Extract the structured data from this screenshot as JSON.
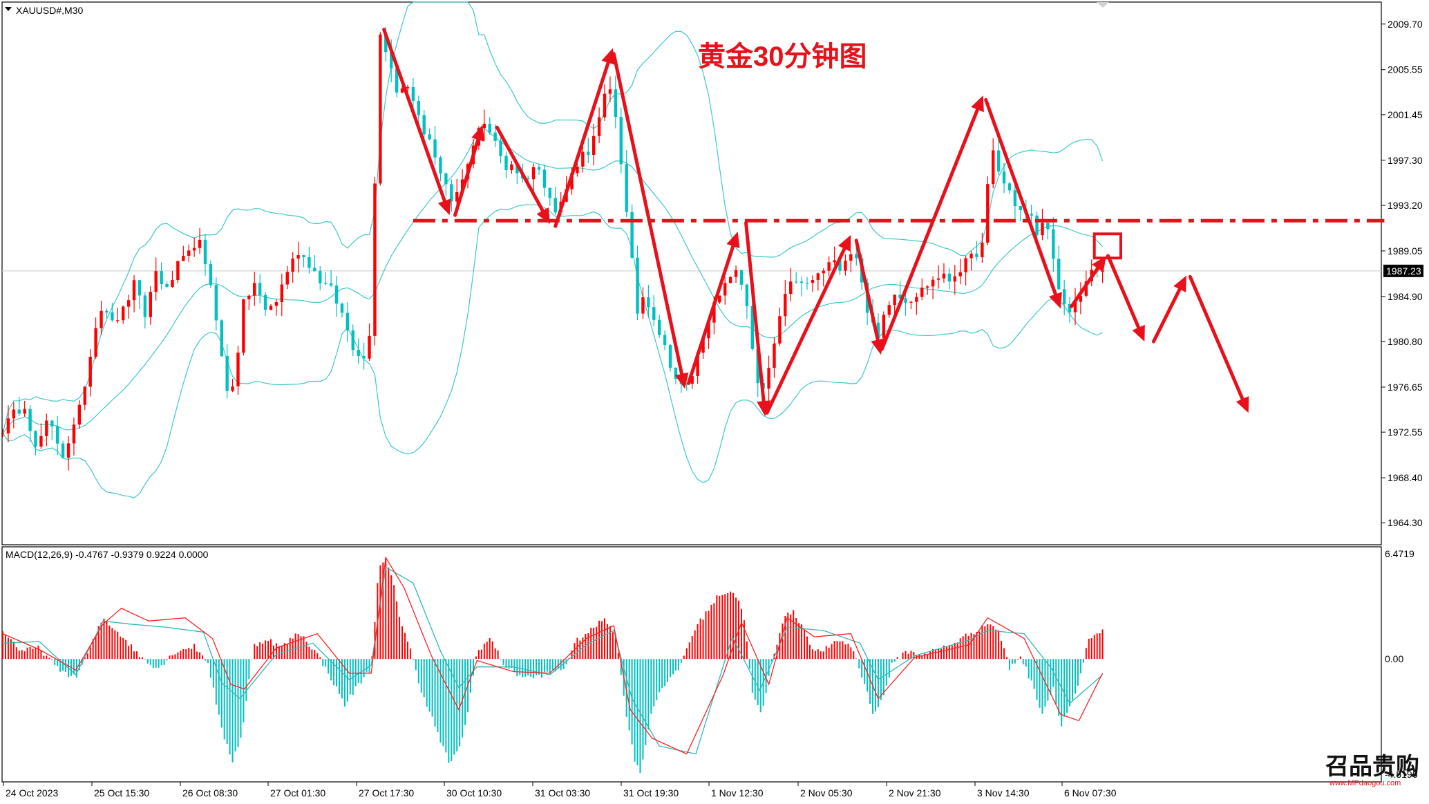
{
  "header": {
    "symbol_label": "XAUUSD#,M30",
    "chart_title": "黄金30分钟图",
    "macd_label": "MACD(12,26,9) -0.4767 -0.9379 0.9224 0.0000"
  },
  "colors": {
    "bull": "#ff0000",
    "bear": "#00c0c0",
    "band": "#3cc8c8",
    "annotation": "#e8101a",
    "grid_line": "#c8c8c8",
    "frame": "#000000",
    "macd_signal": "#ff2020",
    "macd_main": "#2ab8b8"
  },
  "chart_data": [
    {
      "type": "candlestick",
      "symbol": "XAUUSD#",
      "timeframe": "M30",
      "ylim": [
        1962.3,
        2011.7
      ],
      "y_ticks": [
        "2009.70",
        "2005.55",
        "2001.45",
        "1997.30",
        "1993.20",
        "1989.05",
        "1984.90",
        "1980.80",
        "1976.65",
        "1972.55",
        "1968.40",
        "1964.30"
      ],
      "current_price": "1987.23",
      "x_tick_labels": [
        "24 Oct 2023",
        "25 Oct 15:30",
        "26 Oct 08:30",
        "27 Oct 01:30",
        "27 Oct 17:30",
        "30 Oct 10:30",
        "31 Oct 03:30",
        "31 Oct 19:30",
        "1 Nov 12:30",
        "2 Nov 05:30",
        "2 Nov 21:30",
        "3 Nov 14:30",
        "6 Nov 07:30"
      ],
      "close_path_points": [
        [
          0,
          1972.8
        ],
        [
          12,
          1974.2
        ],
        [
          24,
          1975.1
        ],
        [
          36,
          1971.0
        ],
        [
          50,
          1973.6
        ],
        [
          66,
          1970.5
        ],
        [
          82,
          1973.8
        ],
        [
          94,
          1978.6
        ],
        [
          104,
          1983.4
        ],
        [
          112,
          1984.2
        ],
        [
          120,
          1982.4
        ],
        [
          132,
          1983.6
        ],
        [
          144,
          1986.0
        ],
        [
          156,
          1983.2
        ],
        [
          168,
          1987.2
        ],
        [
          180,
          1985.4
        ],
        [
          192,
          1987.7
        ],
        [
          204,
          1988.7
        ],
        [
          214,
          1990.4
        ],
        [
          222,
          1987.5
        ],
        [
          230,
          1985.6
        ],
        [
          240,
          1979.3
        ],
        [
          248,
          1975.2
        ],
        [
          256,
          1978.7
        ],
        [
          264,
          1984.2
        ],
        [
          276,
          1986.1
        ],
        [
          288,
          1983.6
        ],
        [
          300,
          1984.5
        ],
        [
          312,
          1987.3
        ],
        [
          324,
          1989.0
        ],
        [
          336,
          1987.9
        ],
        [
          348,
          1986.4
        ],
        [
          360,
          1985.5
        ],
        [
          372,
          1983.3
        ],
        [
          384,
          1980.4
        ],
        [
          396,
          1979.2
        ],
        [
          404,
          1982.5
        ],
        [
          408,
          1995.5
        ],
        [
          414,
          2008.8
        ],
        [
          420,
          2007.4
        ],
        [
          426,
          2005.9
        ],
        [
          432,
          2003.4
        ],
        [
          440,
          2004.5
        ],
        [
          448,
          2003.0
        ],
        [
          456,
          2001.5
        ],
        [
          464,
          1999.3
        ],
        [
          472,
          1998.4
        ],
        [
          480,
          1996.2
        ],
        [
          488,
          1994.6
        ],
        [
          494,
          1992.5
        ],
        [
          500,
          1994.7
        ],
        [
          508,
          1996.4
        ],
        [
          514,
          1997.5
        ],
        [
          520,
          2000.4
        ],
        [
          528,
          2000.8
        ],
        [
          536,
          1999.6
        ],
        [
          544,
          1998.0
        ],
        [
          552,
          1996.6
        ],
        [
          560,
          1997.2
        ],
        [
          568,
          1995.4
        ],
        [
          576,
          1995.9
        ],
        [
          584,
          1997.0
        ],
        [
          592,
          1995.5
        ],
        [
          600,
          1994.3
        ],
        [
          606,
          1992.6
        ],
        [
          612,
          1993.4
        ],
        [
          618,
          1994.7
        ],
        [
          626,
          1996.4
        ],
        [
          634,
          1997.8
        ],
        [
          642,
          1998.2
        ],
        [
          650,
          1999.6
        ],
        [
          658,
          2002.4
        ],
        [
          664,
          2004.1
        ],
        [
          670,
          2002.6
        ],
        [
          676,
          1999.0
        ],
        [
          682,
          1993.8
        ],
        [
          690,
          1988.0
        ],
        [
          696,
          1983.5
        ],
        [
          702,
          1984.9
        ],
        [
          710,
          1984.1
        ],
        [
          720,
          1981.6
        ],
        [
          730,
          1979.3
        ],
        [
          740,
          1977.0
        ],
        [
          748,
          1976.4
        ],
        [
          756,
          1977.8
        ],
        [
          764,
          1980.2
        ],
        [
          772,
          1982.6
        ],
        [
          780,
          1984.0
        ],
        [
          790,
          1985.4
        ],
        [
          800,
          1987.3
        ],
        [
          808,
          1986.6
        ],
        [
          816,
          1984.2
        ],
        [
          824,
          1979.0
        ],
        [
          830,
          1975.6
        ],
        [
          838,
          1977.2
        ],
        [
          846,
          1980.6
        ],
        [
          854,
          1983.8
        ],
        [
          862,
          1985.7
        ],
        [
          870,
          1986.5
        ],
        [
          878,
          1985.7
        ],
        [
          888,
          1986.4
        ],
        [
          898,
          1987.1
        ],
        [
          908,
          1988.0
        ],
        [
          918,
          1987.7
        ],
        [
          928,
          1989.0
        ],
        [
          936,
          1988.6
        ],
        [
          944,
          1985.1
        ],
        [
          952,
          1982.5
        ],
        [
          960,
          1981.0
        ],
        [
          968,
          1983.9
        ],
        [
          978,
          1985.4
        ],
        [
          988,
          1984.6
        ],
        [
          998,
          1984.8
        ],
        [
          1008,
          1985.5
        ],
        [
          1018,
          1986.3
        ],
        [
          1028,
          1986.8
        ],
        [
          1038,
          1986.4
        ],
        [
          1048,
          1987.3
        ],
        [
          1058,
          1988.1
        ],
        [
          1068,
          1988.9
        ],
        [
          1078,
          1990.0
        ],
        [
          1082,
          1999.6
        ],
        [
          1088,
          1997.3
        ],
        [
          1096,
          1995.4
        ],
        [
          1104,
          1994.5
        ],
        [
          1112,
          1993.0
        ],
        [
          1120,
          1992.4
        ],
        [
          1128,
          1992.0
        ],
        [
          1136,
          1990.2
        ],
        [
          1144,
          1992.6
        ],
        [
          1152,
          1988.0
        ],
        [
          1160,
          1984.4
        ],
        [
          1168,
          1983.3
        ],
        [
          1176,
          1984.3
        ],
        [
          1184,
          1985.6
        ],
        [
          1192,
          1986.9
        ],
        [
          1200,
          1987.2
        ],
        [
          1206,
          1987.23
        ]
      ],
      "macd": {
        "histogram_range": [
          -7.5,
          6.4719
        ],
        "top_label": "6.4719",
        "zero_label": "0.00",
        "bottom_label": "-4.5196",
        "histogram_points": [
          [
            0,
            1.8
          ],
          [
            20,
            0.5
          ],
          [
            40,
            0.7
          ],
          [
            60,
            -0.6
          ],
          [
            80,
            -1.2
          ],
          [
            95,
            0.6
          ],
          [
            110,
            2.6
          ],
          [
            130,
            1.5
          ],
          [
            150,
            0.2
          ],
          [
            170,
            -0.6
          ],
          [
            190,
            0.5
          ],
          [
            210,
            0.8
          ],
          [
            225,
            -0.2
          ],
          [
            240,
            -4.5
          ],
          [
            252,
            -6.4
          ],
          [
            262,
            -4.8
          ],
          [
            275,
            0.8
          ],
          [
            290,
            1.3
          ],
          [
            305,
            0.7
          ],
          [
            325,
            1.7
          ],
          [
            345,
            0.3
          ],
          [
            360,
            -1.2
          ],
          [
            375,
            -2.9
          ],
          [
            390,
            -1.6
          ],
          [
            404,
            -0.6
          ],
          [
            412,
            5.6
          ],
          [
            420,
            6.3
          ],
          [
            428,
            4.8
          ],
          [
            436,
            2.5
          ],
          [
            446,
            0.8
          ],
          [
            456,
            -1.5
          ],
          [
            470,
            -3.6
          ],
          [
            480,
            -5.2
          ],
          [
            490,
            -6.6
          ],
          [
            500,
            -5.8
          ],
          [
            510,
            -3.4
          ],
          [
            520,
            0.5
          ],
          [
            535,
            1.3
          ],
          [
            550,
            -0.4
          ],
          [
            565,
            -1.0
          ],
          [
            580,
            -1.2
          ],
          [
            598,
            -0.9
          ],
          [
            615,
            -0.6
          ],
          [
            630,
            1.2
          ],
          [
            645,
            1.8
          ],
          [
            660,
            2.6
          ],
          [
            672,
            1.6
          ],
          [
            682,
            -2.8
          ],
          [
            692,
            -6.2
          ],
          [
            700,
            -7.2
          ],
          [
            710,
            -3.6
          ],
          [
            722,
            -1.8
          ],
          [
            740,
            -0.8
          ],
          [
            758,
            1.8
          ],
          [
            772,
            3.0
          ],
          [
            786,
            4.1
          ],
          [
            800,
            4.3
          ],
          [
            812,
            3.1
          ],
          [
            822,
            -2.2
          ],
          [
            832,
            -3.6
          ],
          [
            842,
            -0.5
          ],
          [
            856,
            2.6
          ],
          [
            866,
            3.0
          ],
          [
            878,
            2.0
          ],
          [
            890,
            0.4
          ],
          [
            905,
            0.7
          ],
          [
            918,
            1.2
          ],
          [
            932,
            0.7
          ],
          [
            945,
            -1.6
          ],
          [
            955,
            -3.5
          ],
          [
            965,
            -2.5
          ],
          [
            975,
            -0.4
          ],
          [
            990,
            0.5
          ],
          [
            1005,
            0.3
          ],
          [
            1020,
            0.5
          ],
          [
            1040,
            0.9
          ],
          [
            1060,
            1.6
          ],
          [
            1075,
            2.0
          ],
          [
            1080,
            2.3
          ],
          [
            1092,
            1.8
          ],
          [
            1104,
            -0.6
          ],
          [
            1116,
            0.2
          ],
          [
            1128,
            -1.5
          ],
          [
            1140,
            -3.4
          ],
          [
            1152,
            -1.8
          ],
          [
            1160,
            -4.2
          ],
          [
            1170,
            -3.0
          ],
          [
            1180,
            -1.6
          ],
          [
            1190,
            1.1
          ],
          [
            1206,
            1.8
          ]
        ],
        "main_line_points": [
          [
            0,
            1.0
          ],
          [
            40,
            1.1
          ],
          [
            80,
            -1.0
          ],
          [
            110,
            2.4
          ],
          [
            140,
            2.2
          ],
          [
            180,
            2.0
          ],
          [
            220,
            1.7
          ],
          [
            240,
            -1.5
          ],
          [
            260,
            -2.5
          ],
          [
            300,
            0.3
          ],
          [
            340,
            1.0
          ],
          [
            380,
            -1.3
          ],
          [
            404,
            -0.4
          ],
          [
            420,
            5.8
          ],
          [
            450,
            4.8
          ],
          [
            480,
            0.5
          ],
          [
            500,
            -1.8
          ],
          [
            520,
            -0.5
          ],
          [
            560,
            -0.5
          ],
          [
            600,
            -1.0
          ],
          [
            640,
            0.9
          ],
          [
            670,
            1.8
          ],
          [
            690,
            -2.5
          ],
          [
            720,
            -5.5
          ],
          [
            760,
            -6.0
          ],
          [
            800,
            1.4
          ],
          [
            830,
            -2.0
          ],
          [
            860,
            2.0
          ],
          [
            900,
            1.8
          ],
          [
            940,
            1.0
          ],
          [
            960,
            -1.3
          ],
          [
            1000,
            0.2
          ],
          [
            1060,
            1.2
          ],
          [
            1080,
            1.8
          ],
          [
            1120,
            1.6
          ],
          [
            1150,
            -0.6
          ],
          [
            1170,
            -2.8
          ],
          [
            1206,
            -1.0
          ]
        ],
        "signal_line_points": [
          [
            0,
            1.6
          ],
          [
            40,
            0.6
          ],
          [
            80,
            -0.7
          ],
          [
            110,
            2.2
          ],
          [
            130,
            3.2
          ],
          [
            160,
            2.4
          ],
          [
            200,
            2.6
          ],
          [
            230,
            1.3
          ],
          [
            250,
            -1.6
          ],
          [
            265,
            -1.9
          ],
          [
            300,
            0.7
          ],
          [
            345,
            1.6
          ],
          [
            380,
            -0.9
          ],
          [
            404,
            -0.9
          ],
          [
            420,
            6.4
          ],
          [
            440,
            4.5
          ],
          [
            470,
            0.2
          ],
          [
            500,
            -3.2
          ],
          [
            520,
            -0.1
          ],
          [
            560,
            -0.8
          ],
          [
            600,
            -0.9
          ],
          [
            640,
            1.3
          ],
          [
            670,
            2.1
          ],
          [
            688,
            -3.2
          ],
          [
            712,
            -5.0
          ],
          [
            750,
            -6.0
          ],
          [
            790,
            -1.0
          ],
          [
            810,
            2.3
          ],
          [
            840,
            -1.6
          ],
          [
            860,
            2.6
          ],
          [
            890,
            1.4
          ],
          [
            930,
            1.6
          ],
          [
            960,
            -2.5
          ],
          [
            1000,
            0.1
          ],
          [
            1060,
            0.9
          ],
          [
            1080,
            2.6
          ],
          [
            1120,
            1.3
          ],
          [
            1160,
            -3.5
          ],
          [
            1180,
            -3.9
          ],
          [
            1206,
            -0.9
          ]
        ]
      }
    }
  ],
  "watermark": {
    "main": "召品贵购",
    "sub": "www.MPdaogou.com"
  }
}
